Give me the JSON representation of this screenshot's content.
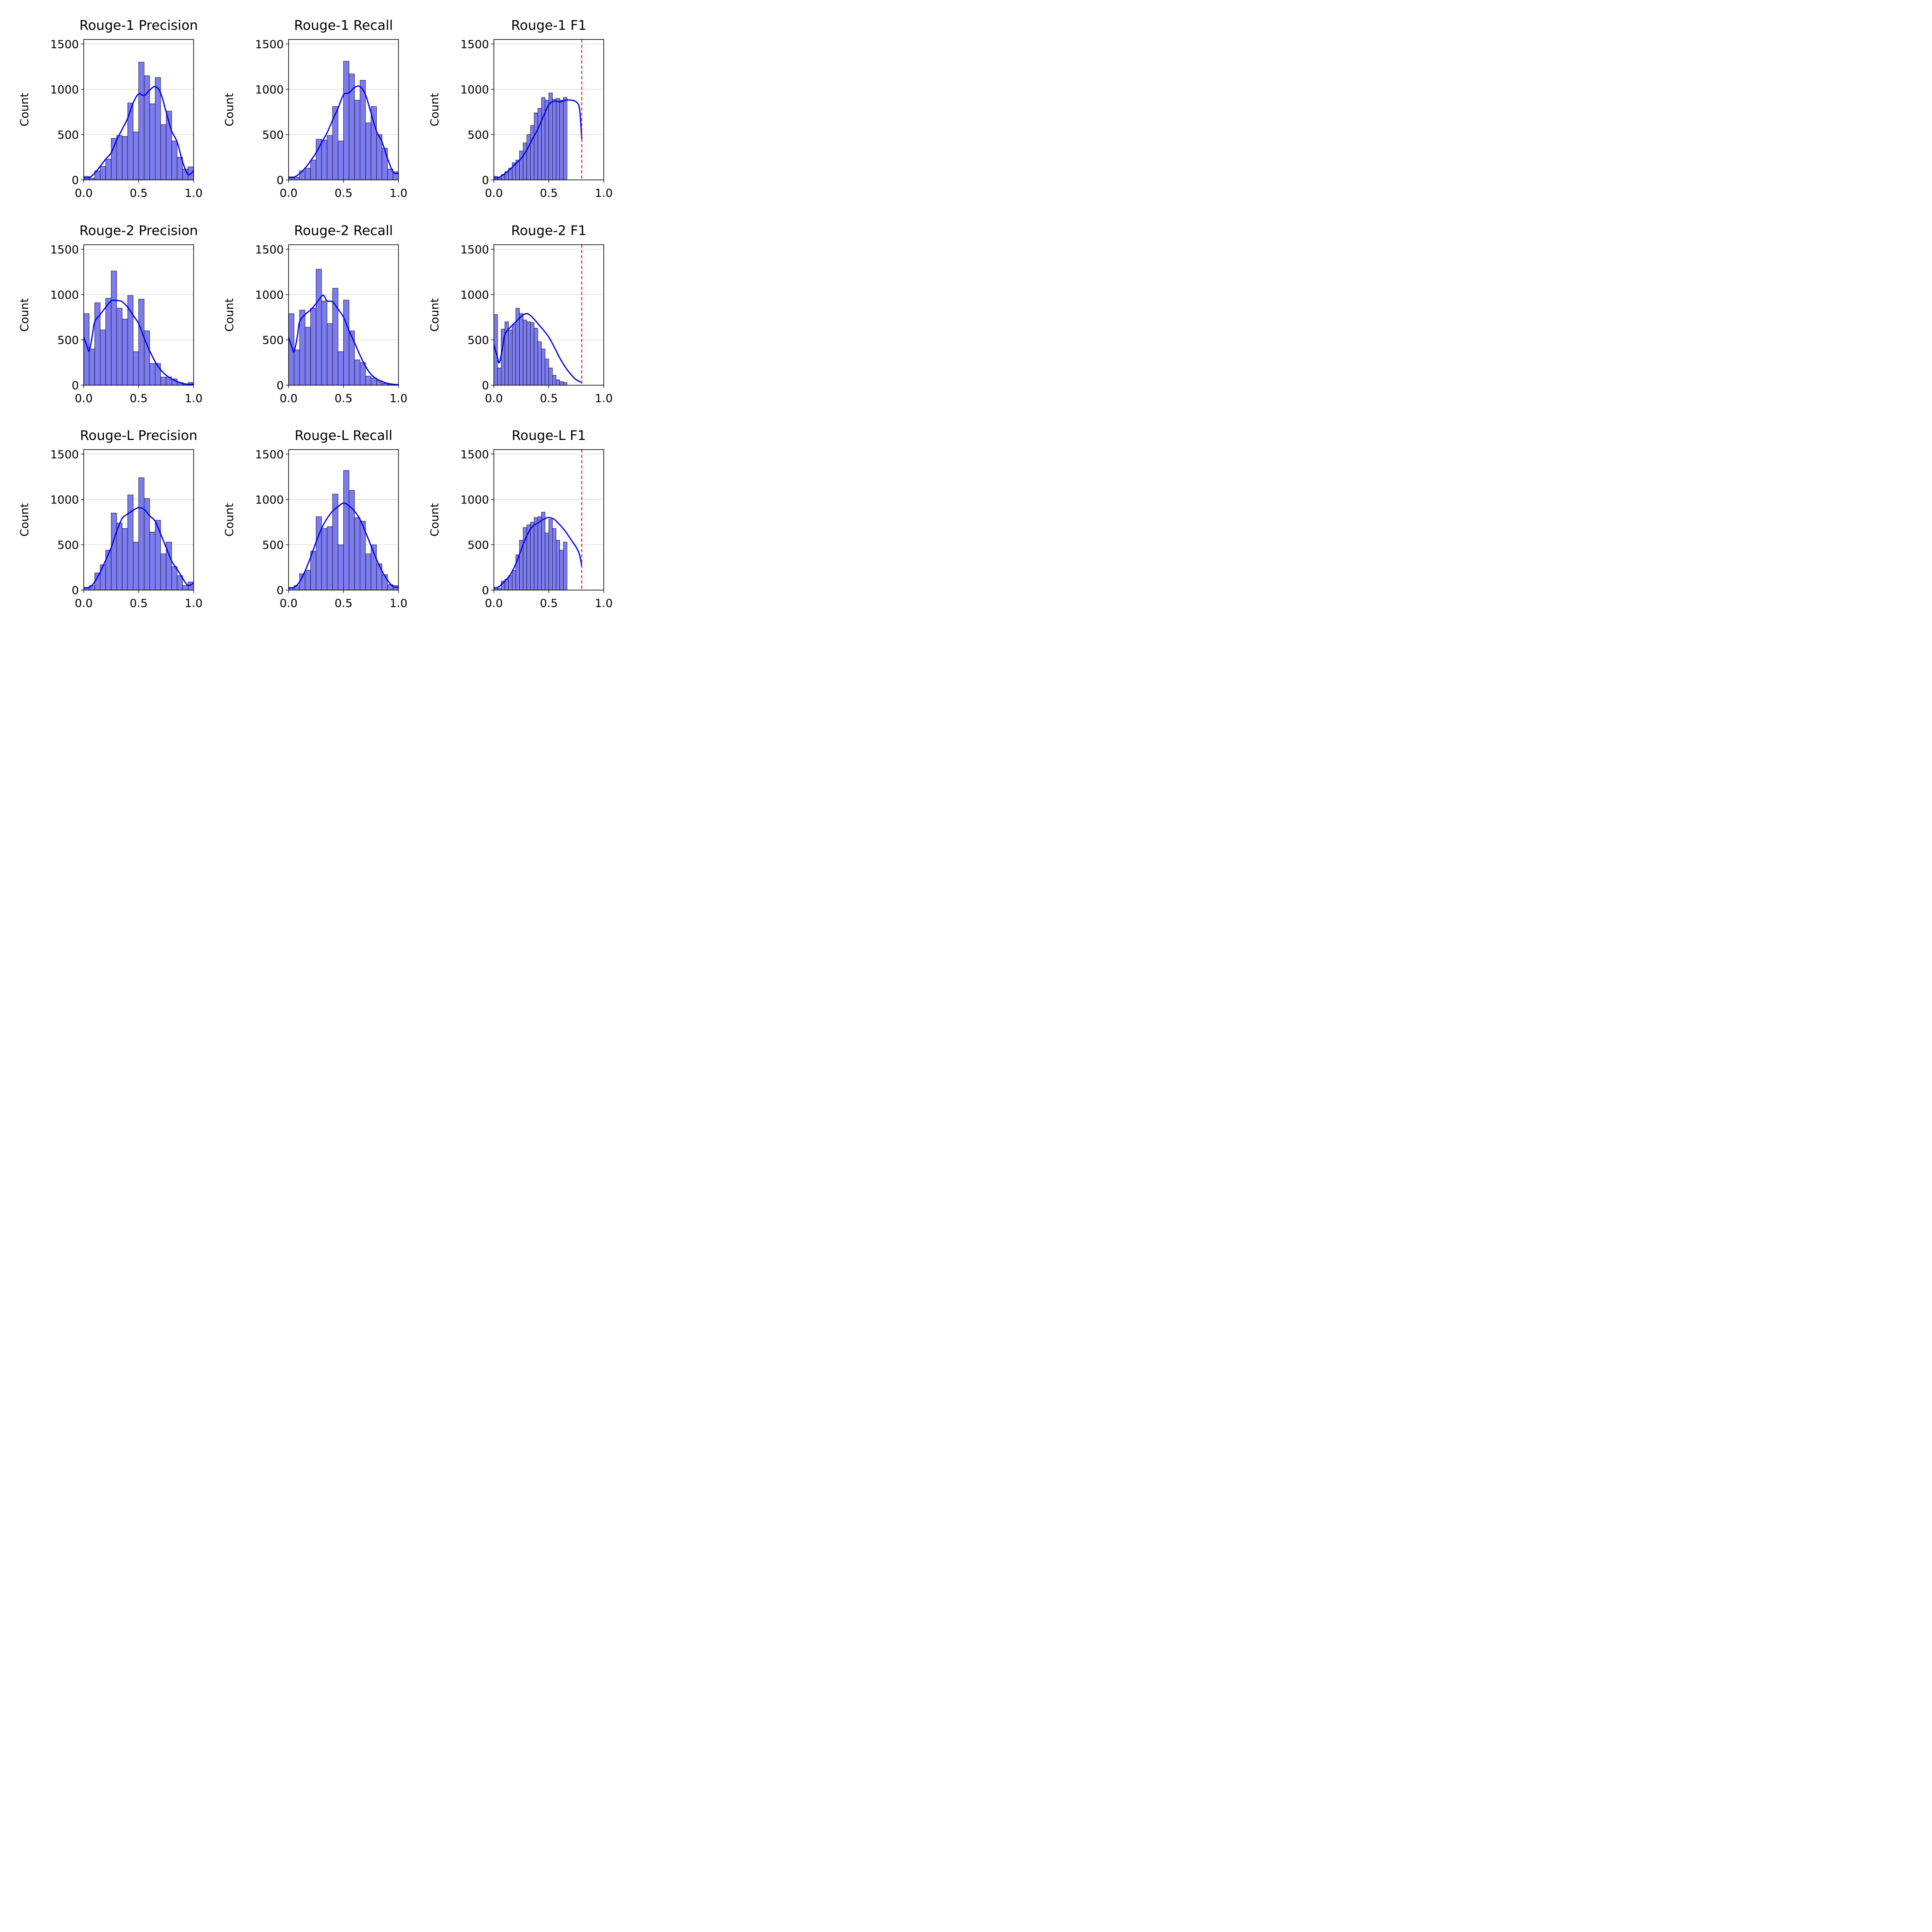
{
  "figure": {
    "bar_fill": "#7c7cf0",
    "bar_edge": "#000000",
    "kde_color": "#0000ee",
    "threshold_color": "#ff0000",
    "grid_color": "#c8c8c8"
  },
  "chart_data": [
    {
      "type": "bar",
      "title": "Rouge-1 Precision",
      "ylabel": "Count",
      "xlim": [
        0,
        1
      ],
      "ylim": [
        0,
        1550
      ],
      "xticks": [
        "0.0",
        "0.5",
        "1.0"
      ],
      "yticks": [
        "0",
        "500",
        "1000",
        "1500"
      ],
      "grid": "y",
      "bin_width": 0.05,
      "values": [
        40,
        20,
        100,
        150,
        230,
        460,
        490,
        480,
        850,
        530,
        1300,
        1150,
        840,
        1130,
        610,
        760,
        430,
        250,
        120,
        145
      ],
      "kde": [
        [
          0.0,
          25
        ],
        [
          0.05,
          25
        ],
        [
          0.1,
          75
        ],
        [
          0.15,
          150
        ],
        [
          0.2,
          230
        ],
        [
          0.25,
          300
        ],
        [
          0.3,
          440
        ],
        [
          0.35,
          560
        ],
        [
          0.4,
          680
        ],
        [
          0.45,
          850
        ],
        [
          0.5,
          950
        ],
        [
          0.55,
          930
        ],
        [
          0.6,
          990
        ],
        [
          0.65,
          1030
        ],
        [
          0.7,
          960
        ],
        [
          0.75,
          750
        ],
        [
          0.8,
          540
        ],
        [
          0.85,
          420
        ],
        [
          0.9,
          200
        ],
        [
          0.95,
          60
        ],
        [
          1.0,
          100
        ]
      ]
    },
    {
      "type": "bar",
      "title": "Rouge-1 Recall",
      "ylabel": "Count",
      "xlim": [
        0,
        1
      ],
      "ylim": [
        0,
        1550
      ],
      "xticks": [
        "0.0",
        "0.5",
        "1.0"
      ],
      "yticks": [
        "0",
        "500",
        "1000",
        "1500"
      ],
      "grid": "y",
      "bin_width": 0.05,
      "values": [
        35,
        30,
        100,
        130,
        220,
        450,
        440,
        490,
        810,
        430,
        1310,
        1170,
        880,
        1100,
        630,
        810,
        500,
        350,
        120,
        90
      ],
      "kde": [
        [
          0.0,
          25
        ],
        [
          0.05,
          30
        ],
        [
          0.1,
          70
        ],
        [
          0.15,
          130
        ],
        [
          0.2,
          210
        ],
        [
          0.25,
          300
        ],
        [
          0.3,
          410
        ],
        [
          0.35,
          520
        ],
        [
          0.4,
          660
        ],
        [
          0.45,
          790
        ],
        [
          0.5,
          940
        ],
        [
          0.55,
          960
        ],
        [
          0.6,
          1020
        ],
        [
          0.65,
          1030
        ],
        [
          0.7,
          940
        ],
        [
          0.75,
          740
        ],
        [
          0.8,
          540
        ],
        [
          0.85,
          420
        ],
        [
          0.9,
          240
        ],
        [
          0.95,
          90
        ],
        [
          1.0,
          70
        ]
      ]
    },
    {
      "type": "bar",
      "title": "Rouge-1 F1",
      "ylabel": "Count",
      "xlim": [
        0,
        1
      ],
      "ylim": [
        0,
        1550
      ],
      "xticks": [
        "0.0",
        "0.5",
        "1.0"
      ],
      "yticks": [
        "0",
        "500",
        "1000",
        "1500"
      ],
      "grid": "y",
      "bin_width": 0.0333,
      "values": [
        40,
        20,
        60,
        90,
        130,
        190,
        220,
        320,
        410,
        500,
        600,
        740,
        790,
        910,
        880,
        960,
        890,
        900,
        880,
        910
      ],
      "kde": [
        [
          0.0,
          20
        ],
        [
          0.05,
          30
        ],
        [
          0.1,
          70
        ],
        [
          0.15,
          120
        ],
        [
          0.2,
          180
        ],
        [
          0.25,
          240
        ],
        [
          0.3,
          330
        ],
        [
          0.35,
          450
        ],
        [
          0.4,
          560
        ],
        [
          0.45,
          700
        ],
        [
          0.5,
          830
        ],
        [
          0.55,
          870
        ],
        [
          0.6,
          860
        ],
        [
          0.65,
          880
        ],
        [
          0.7,
          880
        ],
        [
          0.75,
          860
        ],
        [
          0.78,
          780
        ],
        [
          0.8,
          450
        ]
      ],
      "threshold": 0.8
    },
    {
      "type": "bar",
      "title": "Rouge-2 Precision",
      "ylabel": "Count",
      "xlim": [
        0,
        1
      ],
      "ylim": [
        0,
        1550
      ],
      "xticks": [
        "0.0",
        "0.5",
        "1.0"
      ],
      "yticks": [
        "0",
        "500",
        "1000",
        "1500"
      ],
      "grid": "y",
      "bin_width": 0.05,
      "values": [
        790,
        400,
        910,
        610,
        960,
        1260,
        850,
        730,
        990,
        370,
        950,
        600,
        240,
        240,
        90,
        90,
        70,
        30,
        10,
        30
      ],
      "kde": [
        [
          0.0,
          530
        ],
        [
          0.03,
          430
        ],
        [
          0.05,
          380
        ],
        [
          0.08,
          560
        ],
        [
          0.1,
          700
        ],
        [
          0.15,
          780
        ],
        [
          0.2,
          860
        ],
        [
          0.25,
          930
        ],
        [
          0.3,
          935
        ],
        [
          0.35,
          920
        ],
        [
          0.4,
          860
        ],
        [
          0.45,
          770
        ],
        [
          0.5,
          680
        ],
        [
          0.55,
          520
        ],
        [
          0.6,
          380
        ],
        [
          0.65,
          260
        ],
        [
          0.7,
          170
        ],
        [
          0.75,
          110
        ],
        [
          0.8,
          70
        ],
        [
          0.85,
          40
        ],
        [
          0.9,
          20
        ],
        [
          0.95,
          10
        ],
        [
          1.0,
          10
        ]
      ]
    },
    {
      "type": "bar",
      "title": "Rouge-2 Recall",
      "ylabel": "Count",
      "xlim": [
        0,
        1
      ],
      "ylim": [
        0,
        1550
      ],
      "xticks": [
        "0.0",
        "0.5",
        "1.0"
      ],
      "yticks": [
        "0",
        "500",
        "1000",
        "1500"
      ],
      "grid": "y",
      "bin_width": 0.05,
      "values": [
        790,
        390,
        830,
        640,
        850,
        1280,
        930,
        680,
        1070,
        370,
        940,
        600,
        280,
        250,
        100,
        80,
        50,
        20,
        10,
        10
      ],
      "kde": [
        [
          0.0,
          530
        ],
        [
          0.03,
          420
        ],
        [
          0.05,
          370
        ],
        [
          0.08,
          540
        ],
        [
          0.1,
          700
        ],
        [
          0.15,
          780
        ],
        [
          0.2,
          830
        ],
        [
          0.25,
          900
        ],
        [
          0.3,
          980
        ],
        [
          0.32,
          990
        ],
        [
          0.35,
          930
        ],
        [
          0.4,
          920
        ],
        [
          0.45,
          840
        ],
        [
          0.5,
          750
        ],
        [
          0.55,
          600
        ],
        [
          0.6,
          470
        ],
        [
          0.65,
          330
        ],
        [
          0.7,
          210
        ],
        [
          0.75,
          120
        ],
        [
          0.8,
          70
        ],
        [
          0.85,
          40
        ],
        [
          0.9,
          20
        ],
        [
          0.95,
          10
        ],
        [
          1.0,
          5
        ]
      ]
    },
    {
      "type": "bar",
      "title": "Rouge-2 F1",
      "ylabel": "Count",
      "xlim": [
        0,
        1
      ],
      "ylim": [
        0,
        1550
      ],
      "xticks": [
        "0.0",
        "0.5",
        "1.0"
      ],
      "yticks": [
        "0",
        "500",
        "1000",
        "1500"
      ],
      "grid": "y",
      "bin_width": 0.0333,
      "values": [
        780,
        190,
        620,
        700,
        610,
        670,
        850,
        790,
        720,
        700,
        690,
        630,
        480,
        400,
        290,
        190,
        110,
        60,
        40,
        30
      ],
      "kde": [
        [
          0.0,
          450
        ],
        [
          0.03,
          320
        ],
        [
          0.05,
          250
        ],
        [
          0.08,
          420
        ],
        [
          0.1,
          560
        ],
        [
          0.15,
          640
        ],
        [
          0.2,
          700
        ],
        [
          0.25,
          760
        ],
        [
          0.3,
          790
        ],
        [
          0.35,
          750
        ],
        [
          0.4,
          680
        ],
        [
          0.45,
          610
        ],
        [
          0.5,
          530
        ],
        [
          0.55,
          420
        ],
        [
          0.6,
          300
        ],
        [
          0.65,
          200
        ],
        [
          0.7,
          120
        ],
        [
          0.75,
          60
        ],
        [
          0.8,
          30
        ]
      ],
      "threshold": 0.8
    },
    {
      "type": "bar",
      "title": "Rouge-L Precision",
      "ylabel": "Count",
      "xlim": [
        0,
        1
      ],
      "ylim": [
        0,
        1550
      ],
      "xticks": [
        "0.0",
        "0.5",
        "1.0"
      ],
      "yticks": [
        "0",
        "500",
        "1000",
        "1500"
      ],
      "grid": "y",
      "bin_width": 0.05,
      "values": [
        30,
        50,
        190,
        280,
        440,
        850,
        740,
        680,
        1050,
        530,
        1240,
        1010,
        640,
        770,
        400,
        530,
        260,
        160,
        50,
        90
      ],
      "kde": [
        [
          0.0,
          25
        ],
        [
          0.05,
          30
        ],
        [
          0.1,
          90
        ],
        [
          0.15,
          200
        ],
        [
          0.2,
          330
        ],
        [
          0.25,
          470
        ],
        [
          0.3,
          650
        ],
        [
          0.35,
          790
        ],
        [
          0.4,
          840
        ],
        [
          0.45,
          880
        ],
        [
          0.5,
          910
        ],
        [
          0.55,
          890
        ],
        [
          0.6,
          820
        ],
        [
          0.65,
          760
        ],
        [
          0.7,
          620
        ],
        [
          0.75,
          470
        ],
        [
          0.8,
          320
        ],
        [
          0.85,
          230
        ],
        [
          0.9,
          130
        ],
        [
          0.95,
          50
        ],
        [
          1.0,
          80
        ]
      ]
    },
    {
      "type": "bar",
      "title": "Rouge-L Recall",
      "ylabel": "Count",
      "xlim": [
        0,
        1
      ],
      "ylim": [
        0,
        1550
      ],
      "xticks": [
        "0.0",
        "0.5",
        "1.0"
      ],
      "yticks": [
        "0",
        "500",
        "1000",
        "1500"
      ],
      "grid": "y",
      "bin_width": 0.05,
      "values": [
        30,
        50,
        180,
        220,
        430,
        810,
        680,
        700,
        1060,
        500,
        1320,
        1100,
        800,
        760,
        400,
        500,
        290,
        170,
        60,
        50
      ],
      "kde": [
        [
          0.0,
          25
        ],
        [
          0.05,
          30
        ],
        [
          0.1,
          90
        ],
        [
          0.15,
          210
        ],
        [
          0.2,
          360
        ],
        [
          0.25,
          530
        ],
        [
          0.3,
          680
        ],
        [
          0.35,
          790
        ],
        [
          0.4,
          870
        ],
        [
          0.45,
          920
        ],
        [
          0.5,
          960
        ],
        [
          0.55,
          930
        ],
        [
          0.6,
          870
        ],
        [
          0.65,
          780
        ],
        [
          0.7,
          640
        ],
        [
          0.75,
          490
        ],
        [
          0.8,
          340
        ],
        [
          0.85,
          210
        ],
        [
          0.9,
          110
        ],
        [
          0.95,
          40
        ],
        [
          1.0,
          30
        ]
      ]
    },
    {
      "type": "bar",
      "title": "Rouge-L F1",
      "ylabel": "Count",
      "xlim": [
        0,
        1
      ],
      "ylim": [
        0,
        1550
      ],
      "xticks": [
        "0.0",
        "0.5",
        "1.0"
      ],
      "yticks": [
        "0",
        "500",
        "1000",
        "1500"
      ],
      "grid": "y",
      "bin_width": 0.0333,
      "values": [
        30,
        20,
        100,
        120,
        160,
        220,
        390,
        550,
        690,
        720,
        750,
        800,
        810,
        860,
        630,
        780,
        680,
        550,
        440,
        530
      ],
      "kde": [
        [
          0.0,
          20
        ],
        [
          0.05,
          40
        ],
        [
          0.1,
          100
        ],
        [
          0.15,
          170
        ],
        [
          0.2,
          290
        ],
        [
          0.25,
          450
        ],
        [
          0.3,
          600
        ],
        [
          0.35,
          700
        ],
        [
          0.4,
          740
        ],
        [
          0.45,
          780
        ],
        [
          0.5,
          800
        ],
        [
          0.55,
          780
        ],
        [
          0.6,
          720
        ],
        [
          0.65,
          650
        ],
        [
          0.7,
          560
        ],
        [
          0.75,
          470
        ],
        [
          0.78,
          390
        ],
        [
          0.8,
          260
        ]
      ],
      "threshold": 0.8
    }
  ]
}
